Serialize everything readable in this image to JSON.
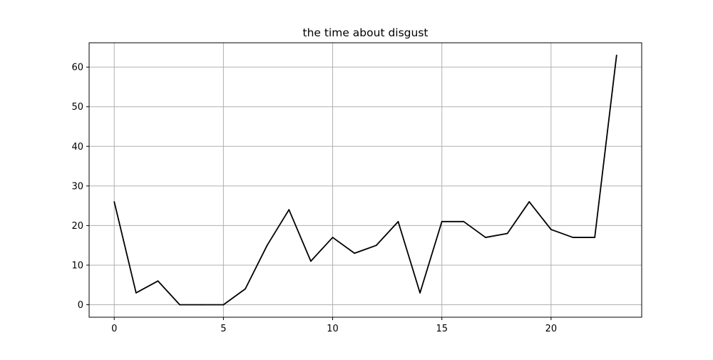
{
  "chart_data": {
    "type": "line",
    "title": "the time about disgust",
    "xlabel": "",
    "ylabel": "",
    "x": [
      0,
      1,
      2,
      3,
      4,
      5,
      6,
      7,
      8,
      9,
      10,
      11,
      12,
      13,
      14,
      15,
      16,
      17,
      18,
      19,
      20,
      21,
      22,
      23
    ],
    "series": [
      {
        "values": [
          26,
          3,
          6,
          0,
          0,
          0,
          4,
          15,
          24,
          11,
          17,
          13,
          15,
          21,
          3,
          21,
          21,
          17,
          18,
          26,
          19,
          17,
          17,
          63
        ],
        "color": "#000000"
      }
    ],
    "xlim": [
      -1.15,
      24.15
    ],
    "ylim": [
      -3.15,
      66.15
    ],
    "xticks": [
      0,
      5,
      10,
      15,
      20
    ],
    "xtick_labels": [
      "0",
      "5",
      "10",
      "15",
      "20"
    ],
    "yticks": [
      0,
      10,
      20,
      30,
      40,
      50,
      60
    ],
    "ytick_labels": [
      "0",
      "10",
      "20",
      "30",
      "40",
      "50",
      "60"
    ],
    "grid": true,
    "legend": "none"
  }
}
